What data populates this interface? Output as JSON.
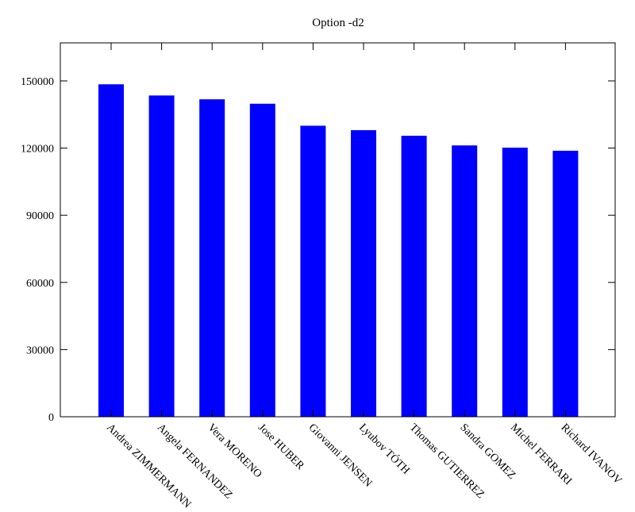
{
  "chart_data": {
    "type": "bar",
    "title": "Option -d2",
    "xlabel": "",
    "ylabel": "",
    "categories": [
      "Andrea ZIMMERMANN",
      "Angela FERNANDEZ",
      "Vera MORENO",
      "Jose HUBER",
      "Giovanni JENSEN",
      "Lyubov TÓTH",
      "Thomas GUTIERREZ",
      "Sandra GOMEZ",
      "Michel FERRARI",
      "Richard IVANOV"
    ],
    "values": [
      148500,
      143500,
      141800,
      139800,
      130000,
      128000,
      125500,
      121200,
      120200,
      118800
    ],
    "ylim": [
      0,
      167000
    ],
    "yticks": [
      0,
      30000,
      60000,
      90000,
      120000,
      150000
    ],
    "ytick_labels": [
      "0",
      "30000",
      "60000",
      "90000",
      "120000",
      "150000"
    ],
    "grid": false,
    "legend": "none",
    "bar_color": "#0000ff"
  }
}
